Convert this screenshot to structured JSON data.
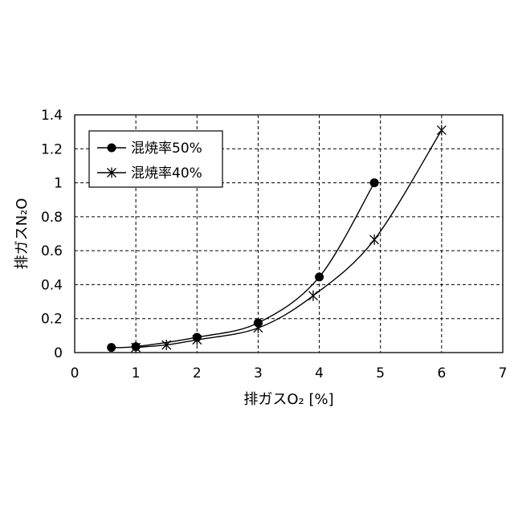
{
  "chart_data": {
    "type": "line",
    "xlabel": "排ガスO₂ [%]",
    "ylabel": "排ガスN₂O",
    "xlim": [
      0,
      7
    ],
    "ylim": [
      0,
      1.4
    ],
    "xticks": [
      "0",
      "1",
      "2",
      "3",
      "4",
      "5",
      "6",
      "7"
    ],
    "yticks": [
      "0",
      "0.2",
      "0.4",
      "0.6",
      "0.8",
      "1",
      "1.2",
      "1.4"
    ],
    "grid": "dashed",
    "legend_position": "top-left",
    "series": [
      {
        "name": "混焼率50%",
        "marker": "circle",
        "x": [
          0.6,
          1.0,
          2.0,
          3.0,
          4.0,
          4.9
        ],
        "y": [
          0.03,
          0.035,
          0.09,
          0.175,
          0.445,
          1.0
        ]
      },
      {
        "name": "混焼率40%",
        "marker": "asterisk",
        "x": [
          1.0,
          1.5,
          2.0,
          3.0,
          3.9,
          4.9,
          6.0
        ],
        "y": [
          0.03,
          0.045,
          0.075,
          0.145,
          0.335,
          0.665,
          1.31
        ]
      }
    ]
  }
}
